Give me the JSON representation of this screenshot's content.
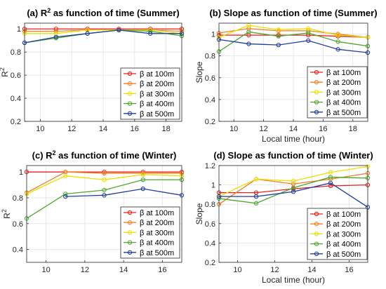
{
  "chart_data": [
    {
      "id": "a",
      "type": "line",
      "title": "(a) R² as function of time (Summer)",
      "xlabel": "",
      "ylabel": "R²",
      "xlim": [
        9,
        19
      ],
      "ylim": [
        0.2,
        1.05
      ],
      "xticks": [
        10,
        12,
        14,
        16,
        18
      ],
      "yticks": [
        0.2,
        0.4,
        0.6,
        0.8,
        1
      ],
      "x": [
        9,
        11,
        13,
        15,
        17,
        19
      ],
      "grid": true,
      "legend_position": "bottom-right",
      "series": [
        {
          "name": "β at 100m",
          "color": "#e8201c",
          "values": [
            1.0,
            1.0,
            1.0,
            1.0,
            1.0,
            1.0
          ]
        },
        {
          "name": "β at 200m",
          "color": "#f07f27",
          "values": [
            0.98,
            0.98,
            0.99,
            0.99,
            0.99,
            0.98
          ]
        },
        {
          "name": "β at 300m",
          "color": "#e8e000",
          "values": [
            0.96,
            0.96,
            0.99,
            0.99,
            0.99,
            0.96
          ]
        },
        {
          "name": "β at 400m",
          "color": "#4ca82c",
          "values": [
            0.88,
            0.92,
            0.96,
            0.99,
            0.98,
            0.94
          ]
        },
        {
          "name": "β at 500m",
          "color": "#1f3d9e",
          "values": [
            0.88,
            0.93,
            0.96,
            0.99,
            0.96,
            0.96
          ]
        }
      ]
    },
    {
      "id": "b",
      "type": "line",
      "title": "(b) Slope as function of time (Summer)",
      "xlabel": "Local time (hour)",
      "ylabel": "Slope",
      "xlim": [
        9,
        19
      ],
      "ylim": [
        0.2,
        1.1
      ],
      "xticks": [
        10,
        12,
        14,
        16,
        18
      ],
      "yticks": [
        0.2,
        0.4,
        0.6,
        0.8,
        1
      ],
      "x": [
        9,
        11,
        13,
        15,
        17,
        19
      ],
      "grid": true,
      "legend_position": "bottom-right",
      "series": [
        {
          "name": "β at 100m",
          "color": "#e8201c",
          "values": [
            0.99,
            0.99,
            0.99,
            0.99,
            0.98,
            0.97
          ]
        },
        {
          "name": "β at 200m",
          "color": "#f07f27",
          "values": [
            1.01,
            1.05,
            1.03,
            1.03,
            1.0,
            0.97
          ]
        },
        {
          "name": "β at 300m",
          "color": "#e8e000",
          "values": [
            0.97,
            1.08,
            1.04,
            1.05,
            0.99,
            0.97
          ]
        },
        {
          "name": "β at 400m",
          "color": "#4ca82c",
          "values": [
            0.84,
            1.02,
            0.98,
            1.01,
            0.93,
            0.89
          ]
        },
        {
          "name": "β at 500m",
          "color": "#1f3d9e",
          "values": [
            0.95,
            0.91,
            0.9,
            0.94,
            0.86,
            0.83
          ]
        }
      ]
    },
    {
      "id": "c",
      "type": "line",
      "title": "(c) R² as function of time (Winter)",
      "xlabel": "",
      "ylabel": "R²",
      "xlim": [
        9,
        17
      ],
      "ylim": [
        0.3,
        1.05
      ],
      "xticks": [
        10,
        12,
        14,
        16
      ],
      "yticks": [
        0.4,
        0.6,
        0.8,
        1
      ],
      "x": [
        9,
        11,
        13,
        15,
        17
      ],
      "grid": true,
      "legend_position": "bottom-right",
      "series": [
        {
          "name": "β at 100m",
          "color": "#e8201c",
          "values": [
            1.0,
            1.0,
            1.0,
            1.0,
            1.0
          ]
        },
        {
          "name": "β at 200m",
          "color": "#f07f27",
          "values": [
            0.84,
            1.0,
            0.99,
            0.99,
            0.99
          ]
        },
        {
          "name": "β at 300m",
          "color": "#e8e000",
          "values": [
            0.83,
            0.97,
            0.94,
            0.98,
            0.97
          ]
        },
        {
          "name": "β at 400m",
          "color": "#4ca82c",
          "values": [
            0.64,
            0.83,
            0.86,
            0.94,
            0.94
          ]
        },
        {
          "name": "β at 500m",
          "color": "#1f3d9e",
          "values": [
            null,
            0.81,
            0.82,
            0.87,
            0.82
          ]
        }
      ]
    },
    {
      "id": "d",
      "type": "line",
      "title": "(d) Slope as function of time (Winter)",
      "xlabel": "Local time (hour)",
      "ylabel": "Slope",
      "xlim": [
        9,
        17
      ],
      "ylim": [
        0.2,
        1.2
      ],
      "xticks": [
        10,
        12,
        14,
        16
      ],
      "yticks": [
        0.2,
        0.4,
        0.6,
        0.8,
        1,
        1.2
      ],
      "x": [
        9,
        11,
        13,
        15,
        17
      ],
      "grid": true,
      "legend_position": "bottom-right",
      "series": [
        {
          "name": "β at 100m",
          "color": "#e8201c",
          "values": [
            0.92,
            0.92,
            0.96,
            0.99,
            1.0
          ]
        },
        {
          "name": "β at 200m",
          "color": "#f07f27",
          "values": [
            0.8,
            1.06,
            1.01,
            1.06,
            1.12
          ]
        },
        {
          "name": "β at 300m",
          "color": "#e8e000",
          "values": [
            0.88,
            1.06,
            1.04,
            1.13,
            1.19
          ]
        },
        {
          "name": "β at 400m",
          "color": "#4ca82c",
          "values": [
            0.86,
            0.81,
            0.97,
            1.08,
            1.07
          ]
        },
        {
          "name": "β at 500m",
          "color": "#1f3d9e",
          "values": [
            0.88,
            0.88,
            0.93,
            1.02,
            0.77
          ]
        }
      ]
    }
  ]
}
